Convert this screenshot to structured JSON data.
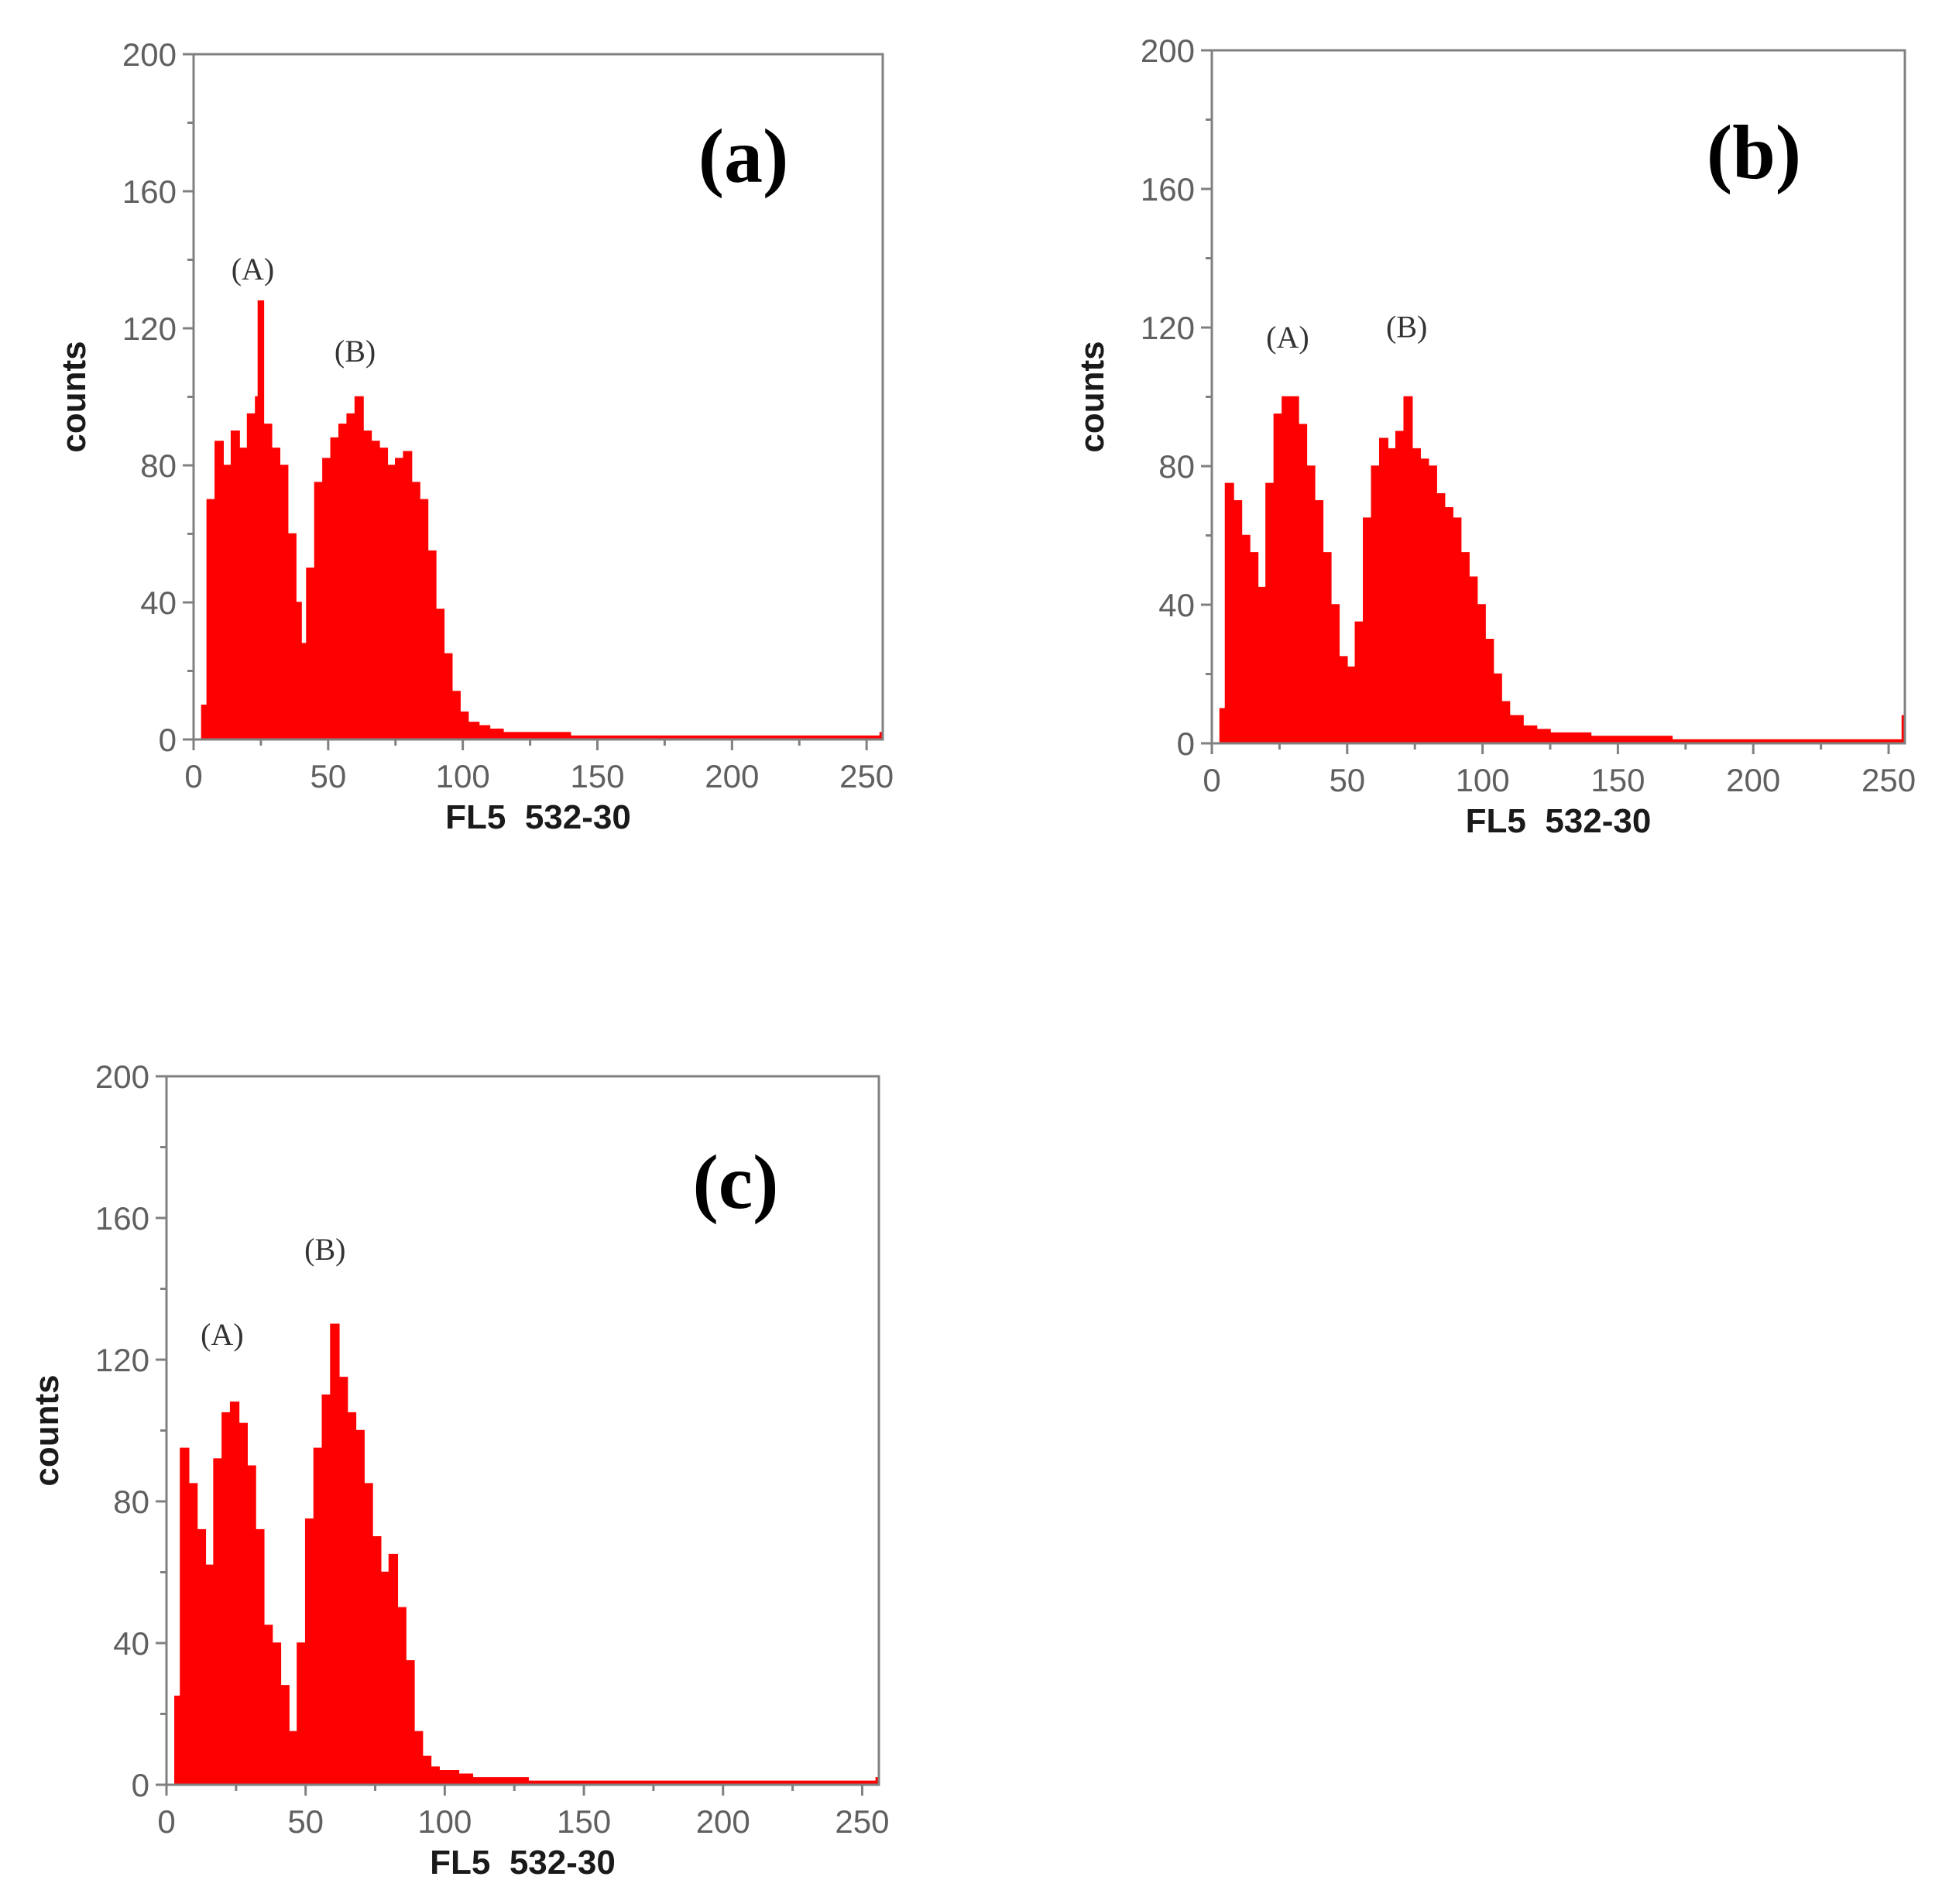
{
  "chart_data": [
    {
      "type": "bar",
      "panel_label": "(a)",
      "xlabel": "FL5  532-30",
      "ylabel": "counts",
      "xlim": [
        0,
        256
      ],
      "ylim": [
        0,
        200
      ],
      "x_ticks": [
        "0",
        "50",
        "100",
        "150",
        "200",
        "250"
      ],
      "y_ticks": [
        "0",
        "40",
        "80",
        "120",
        "160",
        "200"
      ],
      "color": "#ff0000",
      "peak_labels": [
        {
          "text": "(A)",
          "x": 22,
          "y": 132
        },
        {
          "text": "(B)",
          "x": 60,
          "y": 108
        }
      ],
      "histogram": {
        "x": [
          3,
          5,
          8,
          11,
          14,
          17,
          20,
          23,
          24,
          26,
          29,
          32,
          35,
          38,
          40,
          42,
          45,
          48,
          51,
          54,
          57,
          60,
          63,
          66,
          69,
          72,
          75,
          78,
          81,
          84,
          87,
          90,
          93,
          96,
          99,
          102,
          106,
          110,
          115,
          120,
          130,
          140,
          150,
          170,
          190,
          210,
          230,
          250,
          255
        ],
        "counts": [
          10,
          70,
          87,
          80,
          90,
          85,
          95,
          100,
          128,
          92,
          85,
          80,
          60,
          40,
          28,
          50,
          75,
          82,
          88,
          92,
          95,
          100,
          90,
          87,
          85,
          80,
          82,
          84,
          75,
          70,
          55,
          38,
          25,
          14,
          8,
          5,
          4,
          3,
          2,
          2,
          2,
          1,
          1,
          1,
          1,
          1,
          1,
          1,
          2
        ]
      }
    },
    {
      "type": "bar",
      "panel_label": "(b)",
      "xlabel": "FL5  532-30",
      "ylabel": "counts",
      "xlim": [
        0,
        256
      ],
      "ylim": [
        0,
        200
      ],
      "x_ticks": [
        "0",
        "50",
        "100",
        "150",
        "200",
        "250"
      ],
      "y_ticks": [
        "0",
        "40",
        "80",
        "120",
        "160",
        "200"
      ],
      "color": "#ff0000",
      "peak_labels": [
        {
          "text": "(A)",
          "x": 28,
          "y": 112
        },
        {
          "text": "(B)",
          "x": 72,
          "y": 115
        }
      ],
      "histogram": {
        "x": [
          3,
          5,
          8,
          11,
          14,
          17,
          20,
          23,
          26,
          29,
          32,
          35,
          38,
          41,
          44,
          47,
          50,
          53,
          56,
          59,
          62,
          65,
          68,
          71,
          74,
          77,
          80,
          83,
          86,
          89,
          92,
          95,
          98,
          101,
          104,
          107,
          110,
          115,
          120,
          125,
          130,
          140,
          150,
          170,
          190,
          210,
          230,
          250,
          255
        ],
        "counts": [
          10,
          75,
          70,
          60,
          55,
          45,
          75,
          95,
          100,
          100,
          92,
          80,
          70,
          55,
          40,
          25,
          22,
          35,
          65,
          80,
          88,
          85,
          90,
          100,
          85,
          82,
          80,
          72,
          68,
          65,
          55,
          48,
          40,
          30,
          20,
          12,
          8,
          5,
          4,
          3,
          3,
          2,
          2,
          1,
          1,
          1,
          1,
          1,
          8
        ]
      }
    },
    {
      "type": "bar",
      "panel_label": "(c)",
      "xlabel": "FL5  532-30",
      "ylabel": "counts",
      "xlim": [
        0,
        256
      ],
      "ylim": [
        0,
        200
      ],
      "x_ticks": [
        "0",
        "50",
        "100",
        "150",
        "200",
        "250"
      ],
      "y_ticks": [
        "0",
        "40",
        "80",
        "120",
        "160",
        "200"
      ],
      "color": "#ff0000",
      "peak_labels": [
        {
          "text": "(A)",
          "x": 20,
          "y": 122
        },
        {
          "text": "(B)",
          "x": 57,
          "y": 146
        }
      ],
      "histogram": {
        "x": [
          3,
          5,
          8,
          11,
          14,
          17,
          20,
          23,
          26,
          29,
          32,
          35,
          38,
          41,
          44,
          47,
          50,
          53,
          56,
          59,
          62,
          65,
          68,
          71,
          74,
          77,
          80,
          83,
          86,
          89,
          92,
          95,
          98,
          101,
          105,
          110,
          120,
          130,
          150,
          170,
          190,
          210,
          230,
          250,
          255
        ],
        "counts": [
          25,
          95,
          85,
          72,
          62,
          92,
          105,
          108,
          102,
          90,
          72,
          45,
          40,
          28,
          15,
          40,
          75,
          95,
          110,
          130,
          115,
          105,
          100,
          85,
          70,
          60,
          65,
          50,
          35,
          15,
          8,
          5,
          4,
          4,
          3,
          2,
          2,
          1,
          1,
          1,
          1,
          1,
          1,
          1,
          2
        ]
      }
    }
  ]
}
